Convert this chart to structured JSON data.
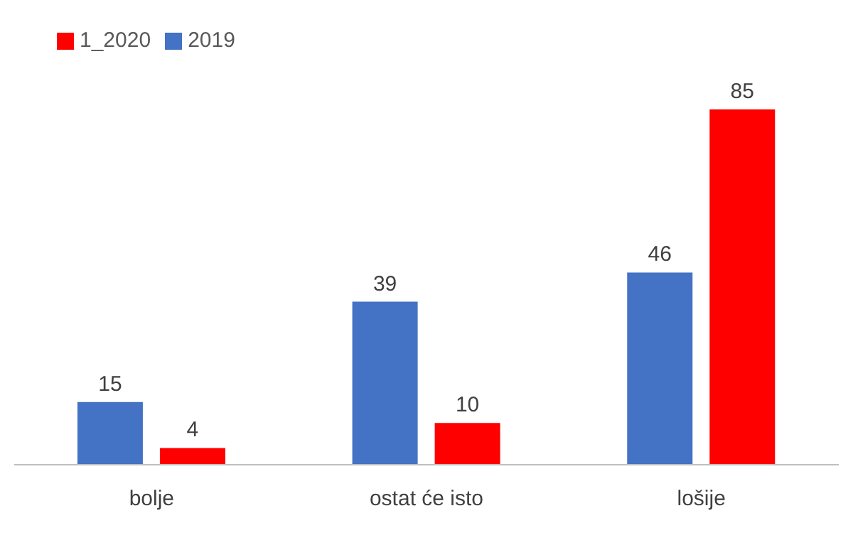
{
  "chart_data": {
    "type": "bar",
    "categories": [
      "bolje",
      "ostat će isto",
      "lošije"
    ],
    "series": [
      {
        "name": "2019",
        "color": "#4472c4",
        "values": [
          15,
          39,
          46
        ]
      },
      {
        "name": "1_2020",
        "color": "#ff0000",
        "values": [
          4,
          10,
          85
        ]
      }
    ],
    "data_labels": true,
    "legend": "top left",
    "grid": false
  }
}
